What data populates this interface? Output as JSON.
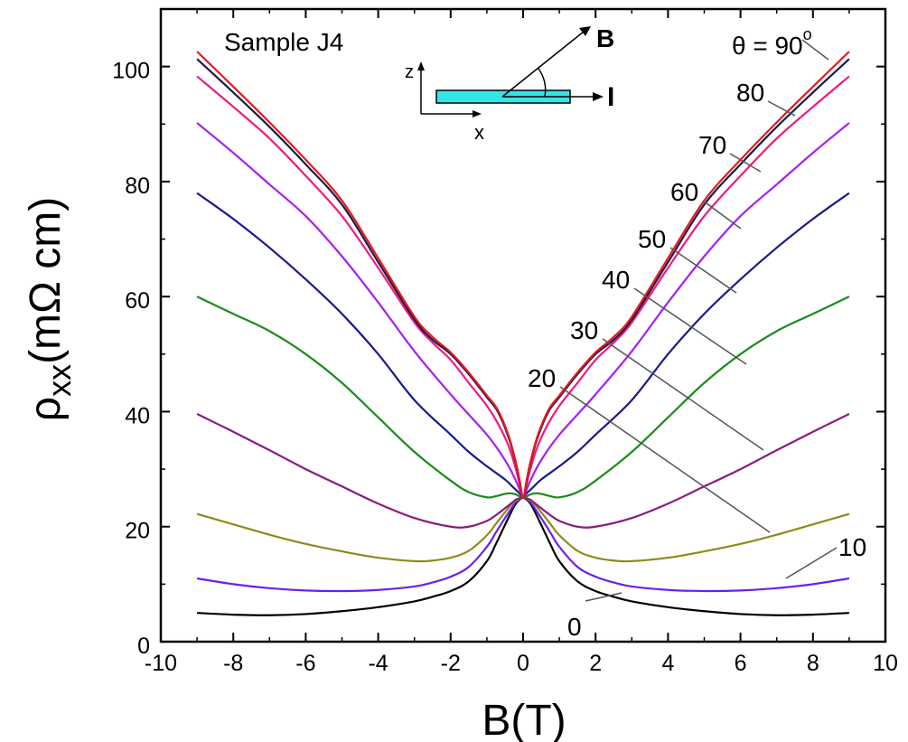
{
  "chart_data": {
    "type": "line",
    "title": "",
    "sample_label": "Sample J4",
    "xlabel": "B(T)",
    "ylabel": {
      "main": "ρ",
      "sub": "xx",
      "rest": "(mΩ cm)"
    },
    "xlim": [
      -10,
      10
    ],
    "ylim": [
      0,
      110
    ],
    "xticks": [
      -10,
      -8,
      -6,
      -4,
      -2,
      0,
      2,
      4,
      6,
      8,
      10
    ],
    "xtick_labels": [
      "-10",
      "-8",
      "-6",
      "-4",
      "-2",
      "0",
      "2",
      "4",
      "6",
      "8",
      "10"
    ],
    "yticks": [
      0,
      20,
      40,
      60,
      80,
      100
    ],
    "ytick_labels": [
      "0",
      "20",
      "40",
      "60",
      "80",
      "100"
    ],
    "inset": {
      "field_label": "B",
      "current_label": "I",
      "x_axis_label": "x",
      "z_axis_label": "z",
      "bar_color": "#33e6e6"
    },
    "theta_prefix": "θ = ",
    "degree_symbol": "o",
    "series": [
      {
        "name": "0",
        "label": "0",
        "color": "#000000",
        "points": [
          [
            0,
            25
          ],
          [
            0.1,
            24.7
          ],
          [
            0.2,
            24.0
          ],
          [
            0.3,
            22.9
          ],
          [
            0.5,
            20.3
          ],
          [
            0.75,
            17.0
          ],
          [
            1,
            14.0
          ],
          [
            1.5,
            10.5
          ],
          [
            2,
            8.8
          ],
          [
            2.5,
            7.8
          ],
          [
            3,
            7.0
          ],
          [
            4,
            6.0
          ],
          [
            5,
            5.3
          ],
          [
            6,
            4.8
          ],
          [
            7,
            4.6
          ],
          [
            8,
            4.7
          ],
          [
            9,
            5.0
          ]
        ]
      },
      {
        "name": "10",
        "label": "10",
        "color": "#6a1ff2",
        "points": [
          [
            0,
            25
          ],
          [
            0.1,
            24.8
          ],
          [
            0.2,
            24.3
          ],
          [
            0.3,
            23.4
          ],
          [
            0.5,
            21.5
          ],
          [
            0.75,
            19.0
          ],
          [
            1,
            16.5
          ],
          [
            1.5,
            13.0
          ],
          [
            2,
            11.3
          ],
          [
            2.5,
            10.3
          ],
          [
            3,
            9.6
          ],
          [
            4,
            9.0
          ],
          [
            5,
            8.8
          ],
          [
            6,
            8.9
          ],
          [
            7,
            9.3
          ],
          [
            8,
            10.0
          ],
          [
            9,
            11.0
          ]
        ]
      },
      {
        "name": "20",
        "label": "20",
        "color": "#8c8c1a",
        "points": [
          [
            0,
            25
          ],
          [
            0.1,
            24.9
          ],
          [
            0.2,
            24.5
          ],
          [
            0.3,
            24.0
          ],
          [
            0.5,
            22.5
          ],
          [
            0.75,
            20.5
          ],
          [
            1,
            18.5
          ],
          [
            1.5,
            15.8
          ],
          [
            2,
            14.6
          ],
          [
            2.5,
            14.1
          ],
          [
            3,
            14.0
          ],
          [
            4,
            14.6
          ],
          [
            5,
            15.7
          ],
          [
            6,
            17.0
          ],
          [
            7,
            18.6
          ],
          [
            8,
            20.4
          ],
          [
            9,
            22.2
          ]
        ]
      },
      {
        "name": "30",
        "label": "30",
        "color": "#8c1a80",
        "points": [
          [
            0,
            25
          ],
          [
            0.1,
            24.9
          ],
          [
            0.2,
            24.7
          ],
          [
            0.3,
            24.2
          ],
          [
            0.5,
            23.2
          ],
          [
            0.75,
            22.0
          ],
          [
            1,
            21.0
          ],
          [
            1.5,
            20.0
          ],
          [
            2,
            20.0
          ],
          [
            3,
            21.5
          ],
          [
            4,
            24.0
          ],
          [
            5,
            27.0
          ],
          [
            6,
            30.0
          ],
          [
            7,
            33.3
          ],
          [
            8,
            36.5
          ],
          [
            9,
            39.6
          ]
        ]
      },
      {
        "name": "40",
        "label": "40",
        "color": "#1a8c1a",
        "points": [
          [
            0,
            25
          ],
          [
            0.2,
            25.6
          ],
          [
            0.35,
            25.8
          ],
          [
            0.5,
            25.7
          ],
          [
            0.75,
            25.3
          ],
          [
            1,
            25.1
          ],
          [
            1.5,
            26.0
          ],
          [
            2,
            28.0
          ],
          [
            3,
            33.0
          ],
          [
            4,
            39.0
          ],
          [
            5,
            45.0
          ],
          [
            6,
            50.0
          ],
          [
            7,
            54.0
          ],
          [
            8,
            57.0
          ],
          [
            9,
            60.0
          ]
        ]
      },
      {
        "name": "50",
        "label": "50",
        "color": "#1a1a8c",
        "points": [
          [
            0,
            25
          ],
          [
            0.1,
            25.8
          ],
          [
            0.3,
            27.0
          ],
          [
            0.5,
            28.2
          ],
          [
            1,
            30.5
          ],
          [
            1.5,
            33.0
          ],
          [
            2,
            36.0
          ],
          [
            3,
            42.0
          ],
          [
            4,
            50.0
          ],
          [
            5,
            57.0
          ],
          [
            6,
            63.0
          ],
          [
            7,
            68.5
          ],
          [
            8,
            73.5
          ],
          [
            9,
            78.0
          ]
        ]
      },
      {
        "name": "60",
        "label": "60",
        "color": "#a61ff2",
        "points": [
          [
            0,
            25
          ],
          [
            0.1,
            26.5
          ],
          [
            0.2,
            28.0
          ],
          [
            0.4,
            30.5
          ],
          [
            0.7,
            33.5
          ],
          [
            1,
            36.0
          ],
          [
            1.5,
            39.5
          ],
          [
            2,
            43.0
          ],
          [
            3,
            50.5
          ],
          [
            4,
            59.0
          ],
          [
            5,
            67.0
          ],
          [
            6,
            74.0
          ],
          [
            7,
            79.5
          ],
          [
            8,
            85.0
          ],
          [
            9,
            90.2
          ]
        ]
      },
      {
        "name": "70",
        "label": "70",
        "color": "#f21a80",
        "points": [
          [
            0,
            25
          ],
          [
            0.1,
            27.5
          ],
          [
            0.2,
            30.0
          ],
          [
            0.4,
            34.0
          ],
          [
            0.7,
            38.0
          ],
          [
            1,
            41.0
          ],
          [
            1.5,
            45.0
          ],
          [
            2,
            49.0
          ],
          [
            2.5,
            52.0
          ],
          [
            3,
            55.5
          ],
          [
            4,
            65.0
          ],
          [
            5,
            74.0
          ],
          [
            6,
            81.0
          ],
          [
            7,
            87.5
          ],
          [
            8,
            93.0
          ],
          [
            9,
            98.3
          ]
        ]
      },
      {
        "name": "80",
        "label": "80",
        "color": "#1a1a4d",
        "points": [
          [
            0,
            25
          ],
          [
            0.1,
            28.0
          ],
          [
            0.2,
            31.0
          ],
          [
            0.4,
            35.5
          ],
          [
            0.7,
            40.0
          ],
          [
            1,
            42.5
          ],
          [
            1.5,
            46.5
          ],
          [
            2,
            50.0
          ],
          [
            2.5,
            52.5
          ],
          [
            3,
            56.0
          ],
          [
            4,
            66.0
          ],
          [
            5,
            76.0
          ],
          [
            6,
            83.0
          ],
          [
            7,
            89.5
          ],
          [
            8,
            95.5
          ],
          [
            9,
            101.3
          ]
        ]
      },
      {
        "name": "90",
        "label": "90",
        "color": "#e61a1a",
        "points": [
          [
            0,
            25
          ],
          [
            0.1,
            28.2
          ],
          [
            0.2,
            31.2
          ],
          [
            0.4,
            35.8
          ],
          [
            0.7,
            40.3
          ],
          [
            1,
            42.8
          ],
          [
            1.5,
            46.8
          ],
          [
            2,
            50.3
          ],
          [
            2.5,
            53.0
          ],
          [
            3,
            56.5
          ],
          [
            4,
            66.7
          ],
          [
            5,
            76.7
          ],
          [
            6,
            83.8
          ],
          [
            7,
            90.3
          ],
          [
            8,
            96.5
          ],
          [
            9,
            102.6
          ]
        ]
      }
    ]
  }
}
